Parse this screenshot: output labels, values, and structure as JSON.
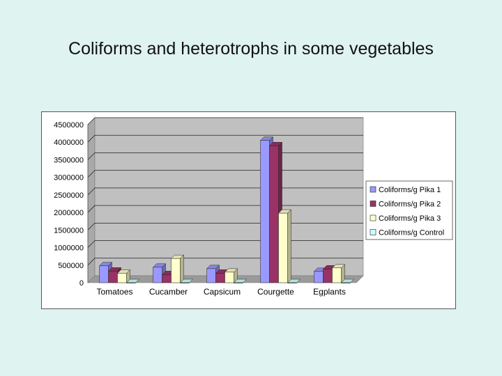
{
  "slide": {
    "title": "Coliforms and heterotrophs in some vegetables"
  },
  "colors": {
    "background": "#dff3f1",
    "plot_wall": "#c0c0c0",
    "series": [
      "#9999ff",
      "#993366",
      "#ffffcc",
      "#ccffff"
    ]
  },
  "chart_data": {
    "type": "bar",
    "title": "",
    "xlabel": "",
    "ylabel": "",
    "categories": [
      "Tomatoes",
      "Cucamber",
      "Capsicum",
      "Courgette",
      "Egplants"
    ],
    "series": [
      {
        "name": "Coliforms/g Pika 1",
        "values": [
          480000,
          440000,
          400000,
          4050000,
          320000
        ]
      },
      {
        "name": "Coliforms/g Pika 2",
        "values": [
          330000,
          230000,
          270000,
          3900000,
          390000
        ]
      },
      {
        "name": "Coliforms/g Pika 3",
        "values": [
          270000,
          690000,
          300000,
          1980000,
          420000
        ]
      },
      {
        "name": "Coliforms/g Control",
        "values": [
          0,
          0,
          0,
          0,
          0
        ]
      }
    ],
    "ylim": [
      0,
      4500000
    ],
    "yticks": [
      "0",
      "500000",
      "1000000",
      "1500000",
      "2000000",
      "2500000",
      "3000000",
      "3500000",
      "4000000",
      "4500000"
    ],
    "grid": true,
    "legend_position": "right",
    "style": "3d-clustered-column"
  }
}
